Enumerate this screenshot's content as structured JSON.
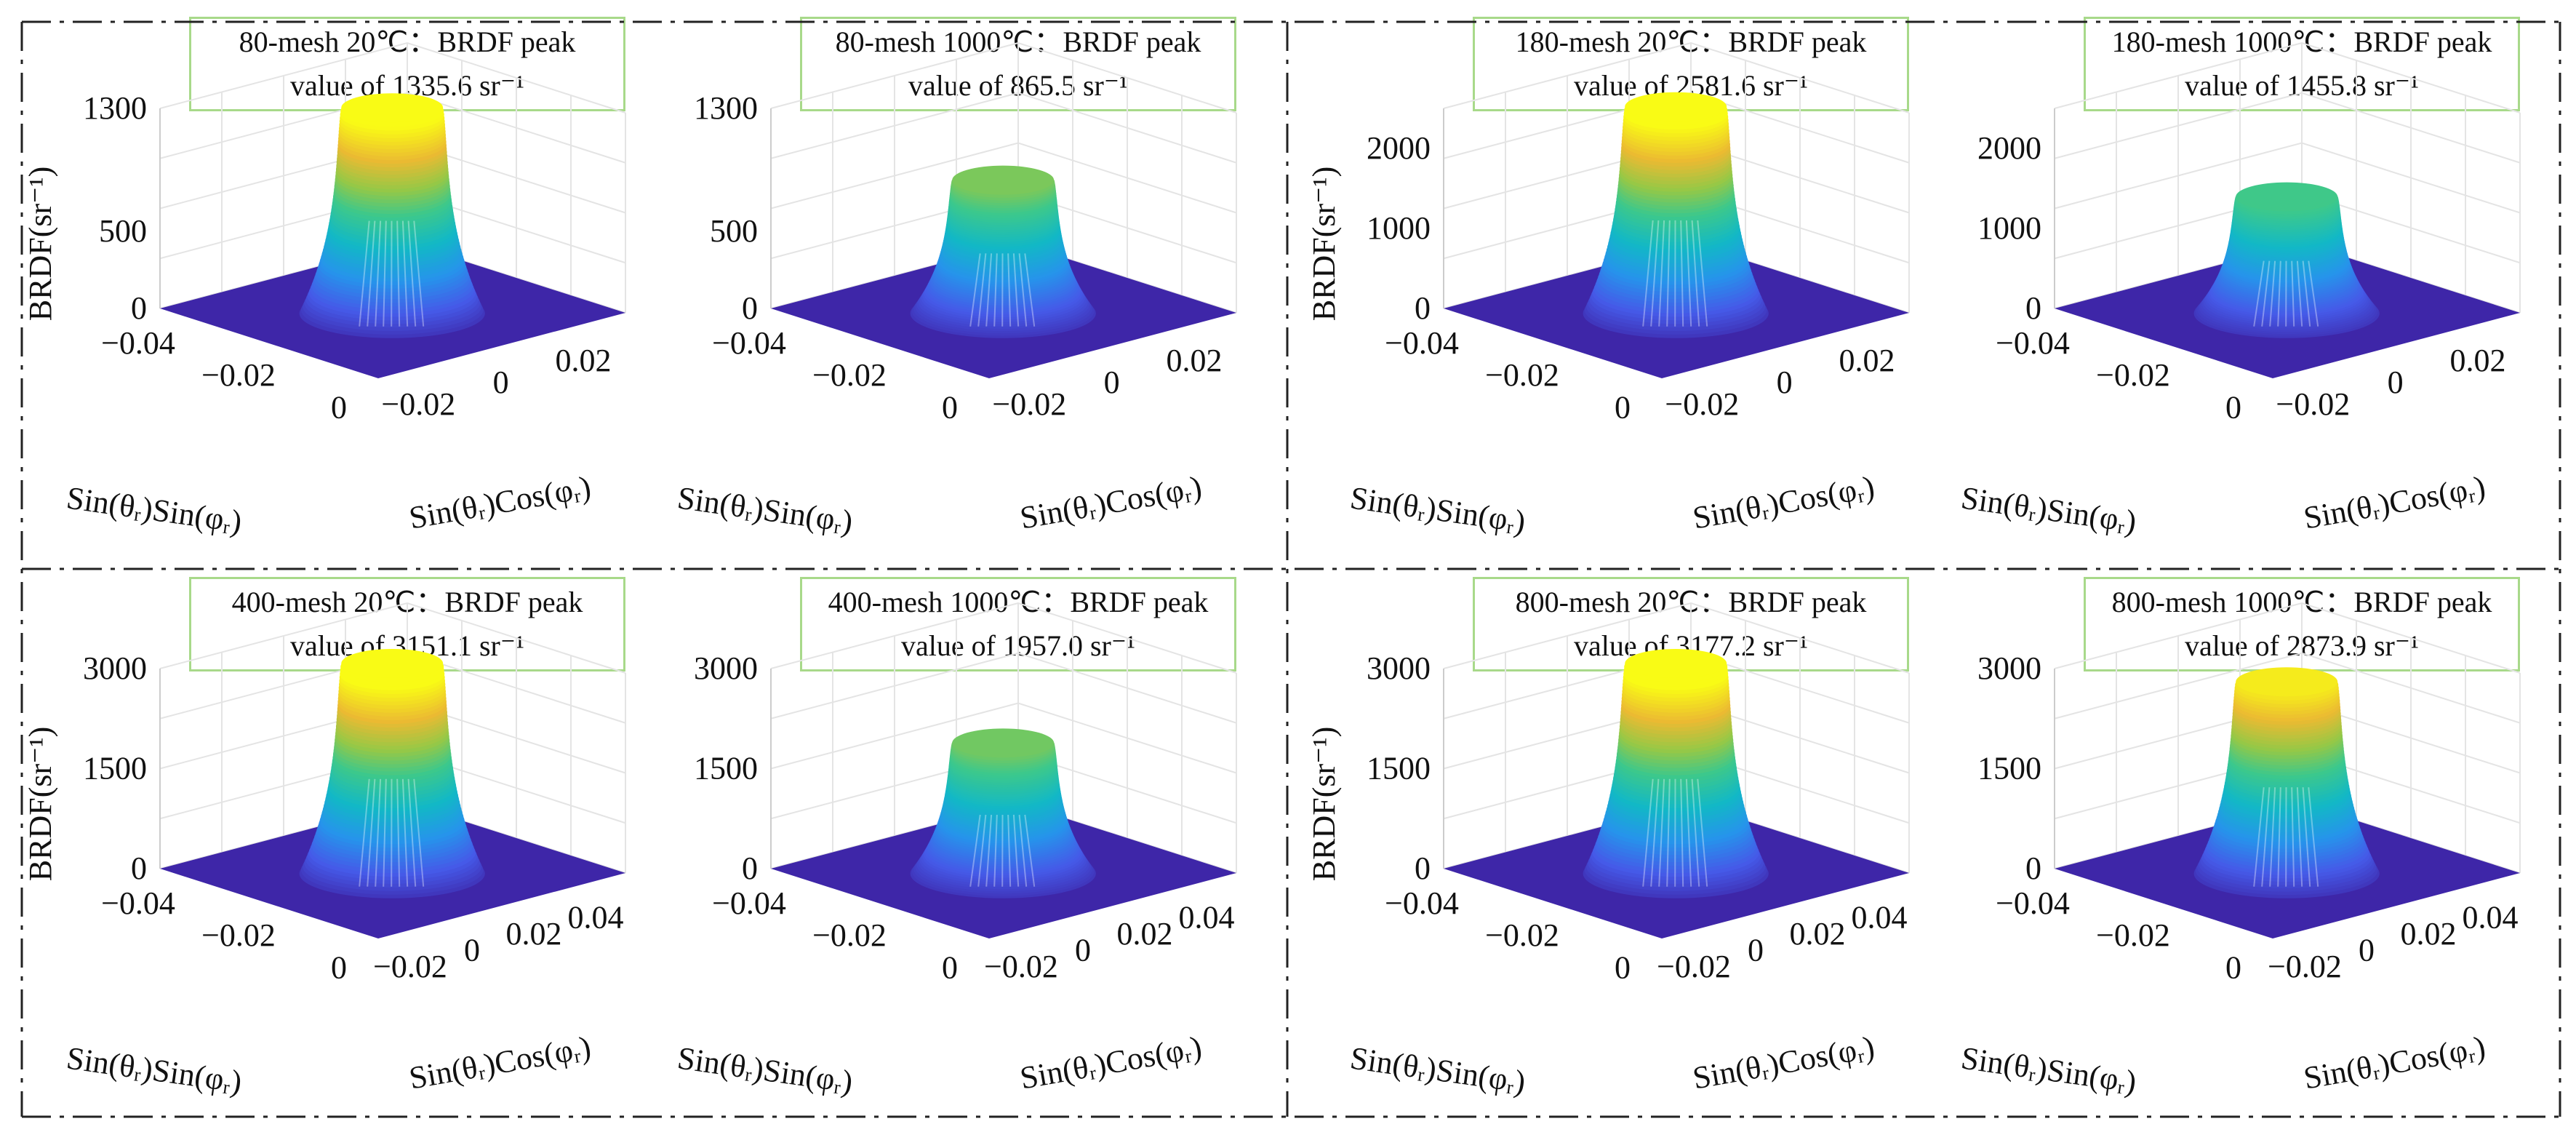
{
  "chart_data": [
    {
      "type": "surface3d",
      "title": [
        "80-mesh 20℃：BRDF peak",
        "value of 1335.6 sr⁻¹"
      ],
      "peak_value": 1335.6,
      "zlabel": "BRDF(sr⁻¹)",
      "xlabel": "Sin(θᵣ)Sin(φᵣ)",
      "ylabel": "Sin(θᵣ)Cos(φᵣ)",
      "zlim": [
        0,
        1300
      ],
      "zticks": [
        "0",
        "500",
        "1300"
      ],
      "zticks_values": [
        0,
        500,
        1300
      ],
      "xticks": [
        "0",
        "−0.02",
        "−0.04"
      ],
      "yticks": [
        "−0.02",
        "0",
        "0.02"
      ],
      "grid": true
    },
    {
      "type": "surface3d",
      "title": [
        "80-mesh 1000℃：BRDF peak",
        "value of  865.5 sr⁻¹"
      ],
      "peak_value": 865.5,
      "zlabel": "",
      "xlabel": "Sin(θᵣ)Sin(φᵣ)",
      "ylabel": "Sin(θᵣ)Cos(φᵣ)",
      "zlim": [
        0,
        1300
      ],
      "zticks": [
        "0",
        "500",
        "1300"
      ],
      "zticks_values": [
        0,
        500,
        1300
      ],
      "xticks": [
        "0",
        "−0.02",
        "−0.04"
      ],
      "yticks": [
        "−0.02",
        "0",
        "0.02"
      ],
      "grid": true
    },
    {
      "type": "surface3d",
      "title": [
        "180-mesh 20℃：BRDF peak",
        "value of  2581.6 sr⁻¹"
      ],
      "peak_value": 2581.6,
      "zlabel": "BRDF(sr⁻¹)",
      "xlabel": "Sin(θᵣ)Sin(φᵣ)",
      "ylabel": "Sin(θᵣ)Cos(φᵣ)",
      "zlim": [
        0,
        2500
      ],
      "zticks": [
        "0",
        "1000",
        "2000"
      ],
      "zticks_values": [
        0,
        1000,
        2000
      ],
      "xticks": [
        "0",
        "−0.02",
        "−0.04"
      ],
      "yticks": [
        "−0.02",
        "0",
        "0.02"
      ],
      "grid": true
    },
    {
      "type": "surface3d",
      "title": [
        "180-mesh 1000℃：BRDF peak",
        "value of  1455.8 sr⁻¹"
      ],
      "peak_value": 1455.8,
      "zlabel": "",
      "xlabel": "Sin(θᵣ)Sin(φᵣ)",
      "ylabel": "Sin(θᵣ)Cos(φᵣ)",
      "zlim": [
        0,
        2500
      ],
      "zticks": [
        "0",
        "1000",
        "2000"
      ],
      "zticks_values": [
        0,
        1000,
        2000
      ],
      "xticks": [
        "0",
        "−0.02",
        "−0.04"
      ],
      "yticks": [
        "−0.02",
        "0",
        "0.02"
      ],
      "grid": true
    },
    {
      "type": "surface3d",
      "title": [
        "400-mesh 20℃：BRDF peak",
        "value of 3151.1 sr⁻¹"
      ],
      "peak_value": 3151.1,
      "zlabel": "BRDF(sr⁻¹)",
      "xlabel": "Sin(θᵣ)Sin(φᵣ)",
      "ylabel": "Sin(θᵣ)Cos(φᵣ)",
      "zlim": [
        0,
        3000
      ],
      "zticks": [
        "0",
        "1500",
        "3000"
      ],
      "zticks_values": [
        0,
        1500,
        3000
      ],
      "xticks": [
        "0",
        "−0.02",
        "−0.04"
      ],
      "yticks": [
        "−0.02",
        "0",
        "0.02",
        "0.04"
      ],
      "grid": true
    },
    {
      "type": "surface3d",
      "title": [
        "400-mesh 1000℃：BRDF peak",
        "value of  1957.0 sr⁻¹"
      ],
      "peak_value": 1957.0,
      "zlabel": "",
      "xlabel": "Sin(θᵣ)Sin(φᵣ)",
      "ylabel": "Sin(θᵣ)Cos(φᵣ)",
      "zlim": [
        0,
        3000
      ],
      "zticks": [
        "0",
        "1500",
        "3000"
      ],
      "zticks_values": [
        0,
        1500,
        3000
      ],
      "xticks": [
        "0",
        "−0.02",
        "−0.04"
      ],
      "yticks": [
        "−0.02",
        "0",
        "0.02",
        "0.04"
      ],
      "grid": true
    },
    {
      "type": "surface3d",
      "title": [
        "800-mesh 20℃：BRDF peak",
        "value of  3177.2 sr⁻¹"
      ],
      "peak_value": 3177.2,
      "zlabel": "BRDF(sr⁻¹)",
      "xlabel": "Sin(θᵣ)Sin(φᵣ)",
      "ylabel": "Sin(θᵣ)Cos(φᵣ)",
      "zlim": [
        0,
        3000
      ],
      "zticks": [
        "0",
        "1500",
        "3000"
      ],
      "zticks_values": [
        0,
        1500,
        3000
      ],
      "xticks": [
        "0",
        "−0.02",
        "−0.04"
      ],
      "yticks": [
        "−0.02",
        "0",
        "0.02",
        "0.04"
      ],
      "grid": true
    },
    {
      "type": "surface3d",
      "title": [
        "800-mesh 1000℃：BRDF peak",
        "value of  2873.9 sr⁻¹"
      ],
      "peak_value": 2873.9,
      "zlabel": "",
      "xlabel": "Sin(θᵣ)Sin(φᵣ)",
      "ylabel": "Sin(θᵣ)Cos(φᵣ)",
      "zlim": [
        0,
        3000
      ],
      "zticks": [
        "0",
        "1500",
        "3000"
      ],
      "zticks_values": [
        0,
        1500,
        3000
      ],
      "xticks": [
        "0",
        "−0.02",
        "−0.04"
      ],
      "yticks": [
        "−0.02",
        "0",
        "0.02",
        "0.04"
      ],
      "grid": true
    }
  ],
  "colors": {
    "surface_low": "#3e26a8",
    "surface_mid": "#12b1c6",
    "surface_high": "#f9fb15",
    "title_border": "#a8d98a",
    "grid": "#e4e4e4"
  }
}
